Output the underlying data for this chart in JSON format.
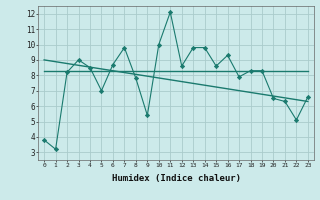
{
  "x_data": [
    0,
    1,
    2,
    3,
    4,
    5,
    6,
    7,
    8,
    9,
    10,
    11,
    12,
    13,
    14,
    15,
    16,
    17,
    18,
    19,
    20,
    21,
    22,
    23
  ],
  "y_data": [
    3.8,
    3.2,
    8.2,
    9.0,
    8.5,
    7.0,
    8.7,
    9.8,
    7.8,
    5.4,
    10.0,
    12.1,
    8.6,
    9.8,
    9.8,
    8.6,
    9.3,
    7.9,
    8.3,
    8.3,
    6.5,
    6.3,
    5.1,
    6.6
  ],
  "trend1_x": [
    0,
    23
  ],
  "trend1_y": [
    8.3,
    8.3
  ],
  "trend2_x": [
    0,
    23
  ],
  "trend2_y": [
    9.0,
    6.3
  ],
  "line_color": "#1a7a6e",
  "bg_color": "#cceaea",
  "grid_color": "#aacccc",
  "xlabel": "Humidex (Indice chaleur)",
  "xlim": [
    -0.5,
    23.5
  ],
  "ylim": [
    2.5,
    12.5
  ],
  "yticks": [
    3,
    4,
    5,
    6,
    7,
    8,
    9,
    10,
    11,
    12
  ],
  "xticks": [
    0,
    1,
    2,
    3,
    4,
    5,
    6,
    7,
    8,
    9,
    10,
    11,
    12,
    13,
    14,
    15,
    16,
    17,
    18,
    19,
    20,
    21,
    22,
    23
  ]
}
